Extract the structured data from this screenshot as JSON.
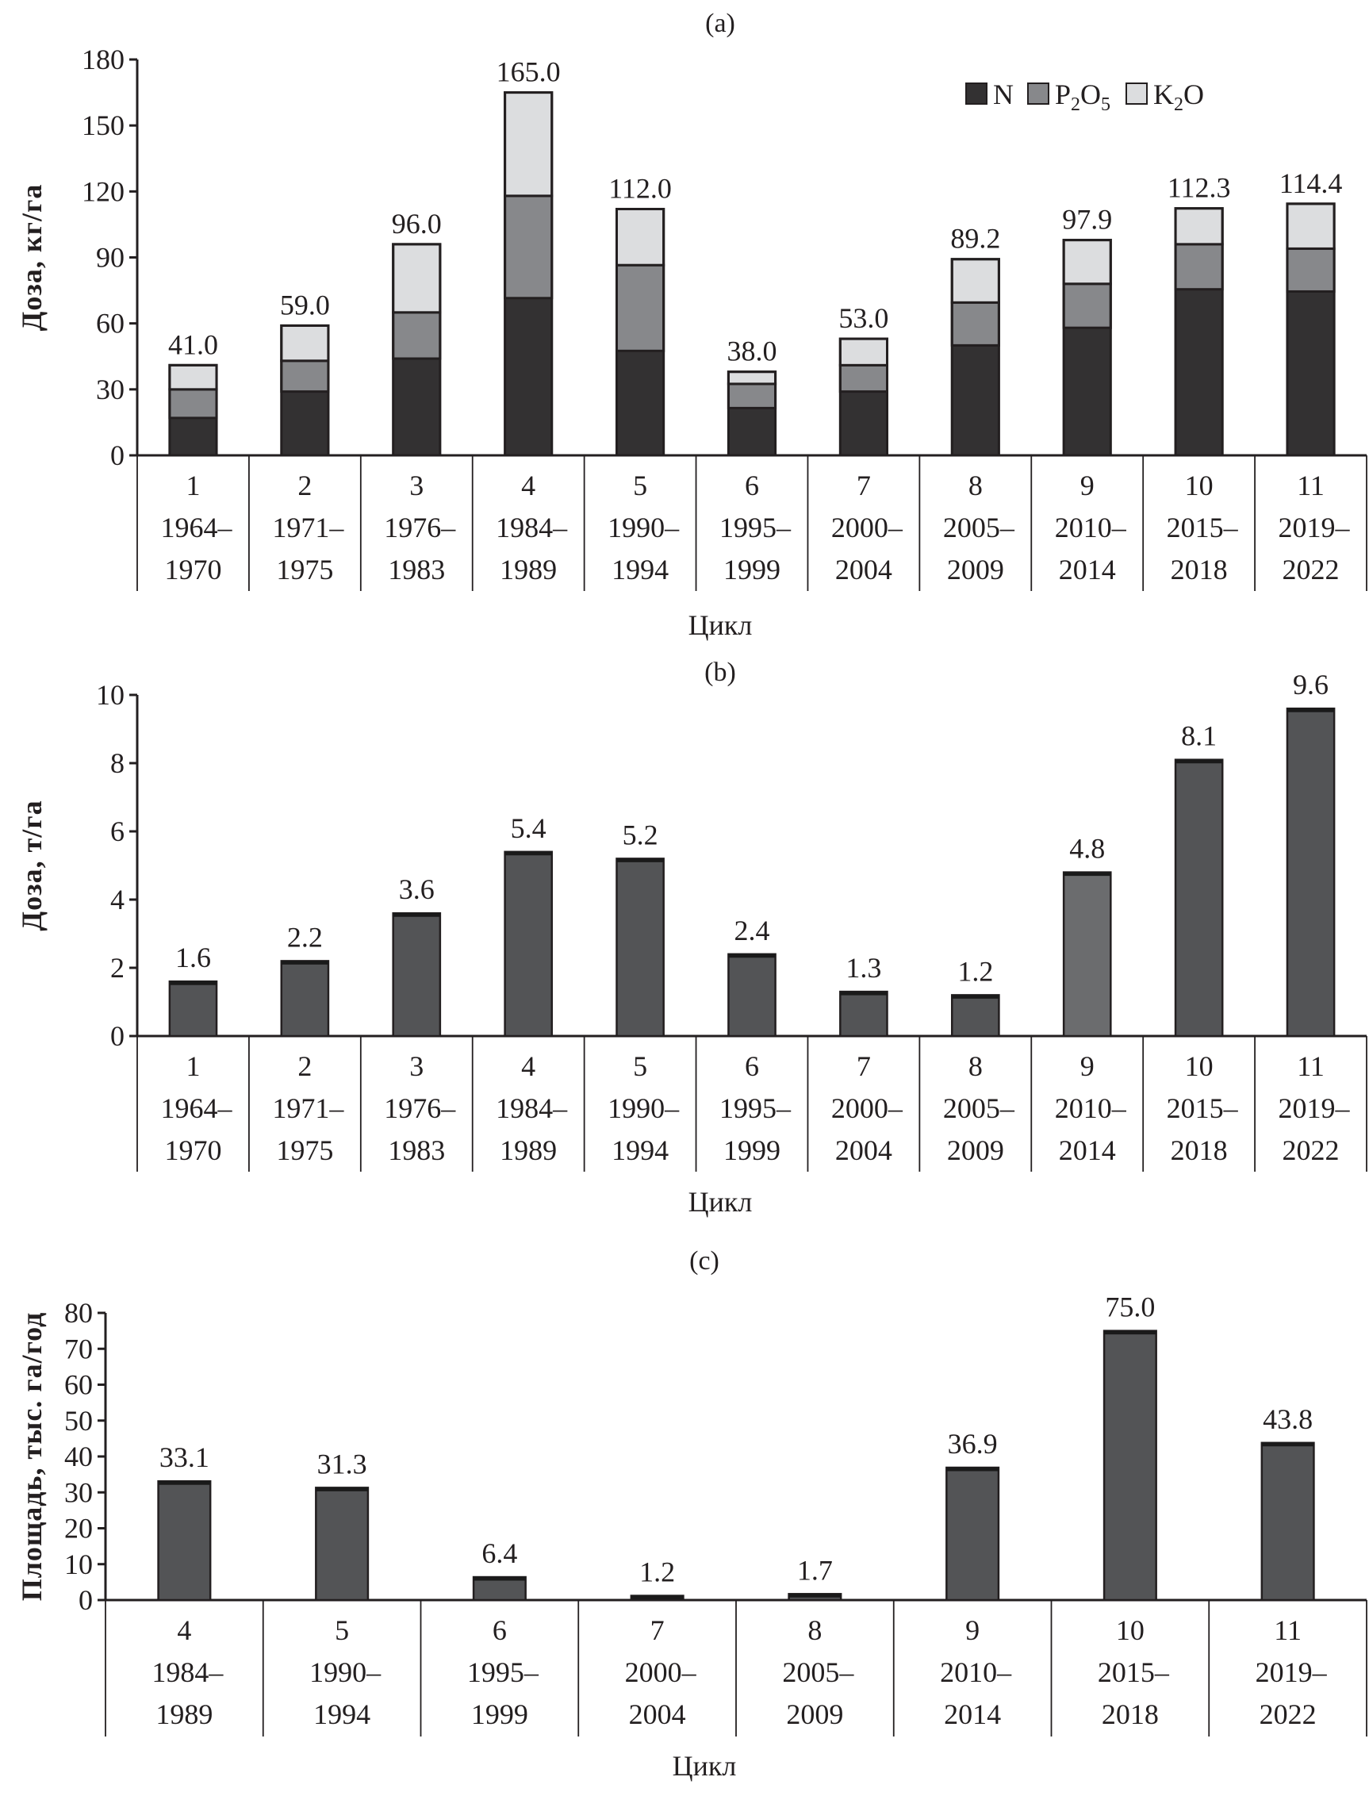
{
  "colors": {
    "N": "#333132",
    "P2O5": "#87888b",
    "K2O": "#dcdddf",
    "bar": "#535456",
    "bar_highlight": "#6b6c6e",
    "outline": "#231f20"
  },
  "chart_data": [
    {
      "id": "a",
      "type": "bar",
      "stacked": true,
      "panel_title": "(a)",
      "xlabel": "Цикл",
      "ylabel": "Доза, кг/га",
      "ylim": [
        0,
        180
      ],
      "yticks": [
        0,
        30,
        60,
        90,
        120,
        150,
        180
      ],
      "legend_position": "top-right",
      "legend": [
        {
          "key": "N",
          "label": "N",
          "sub": ""
        },
        {
          "key": "P2O5",
          "label": "P",
          "sub1": "2",
          "label2": "O",
          "sub2": "5"
        },
        {
          "key": "K2O",
          "label": "K",
          "sub1": "2",
          "label2": "O",
          "sub2": ""
        }
      ],
      "categories": [
        {
          "cycle": "1",
          "years1": "1964–",
          "years2": "1970"
        },
        {
          "cycle": "2",
          "years1": "1971–",
          "years2": "1975"
        },
        {
          "cycle": "3",
          "years1": "1976–",
          "years2": "1983"
        },
        {
          "cycle": "4",
          "years1": "1984–",
          "years2": "1989"
        },
        {
          "cycle": "5",
          "years1": "1990–",
          "years2": "1994"
        },
        {
          "cycle": "6",
          "years1": "1995–",
          "years2": "1999"
        },
        {
          "cycle": "7",
          "years1": "2000–",
          "years2": "2004"
        },
        {
          "cycle": "8",
          "years1": "2005–",
          "years2": "2009"
        },
        {
          "cycle": "9",
          "years1": "2010–",
          "years2": "2014"
        },
        {
          "cycle": "10",
          "years1": "2015–",
          "years2": "2018"
        },
        {
          "cycle": "11",
          "years1": "2019–",
          "years2": "2022"
        }
      ],
      "series": [
        {
          "name": "N",
          "values": [
            17,
            29,
            44,
            71.5,
            47.5,
            21.5,
            29,
            50,
            58,
            75.5,
            74.5
          ]
        },
        {
          "name": "P2O5",
          "values": [
            13,
            14,
            21,
            46.5,
            39,
            11,
            12,
            19.5,
            20,
            20.5,
            19.5
          ]
        },
        {
          "name": "K2O",
          "values": [
            11,
            16,
            31,
            47,
            25.5,
            5.5,
            12,
            19.7,
            19.9,
            16.3,
            20.4
          ]
        }
      ],
      "totals": [
        41.0,
        59.0,
        96.0,
        165.0,
        112.0,
        38.0,
        53.0,
        89.2,
        97.9,
        112.3,
        114.4
      ],
      "total_labels": [
        "41.0",
        "59.0",
        "96.0",
        "165.0",
        "112.0",
        "38.0",
        "53.0",
        "89.2",
        "97.9",
        "112.3",
        "114.4"
      ]
    },
    {
      "id": "b",
      "type": "bar",
      "panel_title": "(b)",
      "xlabel": "Цикл",
      "ylabel": "Доза, т/га",
      "ylim": [
        0,
        10
      ],
      "yticks": [
        0,
        2,
        4,
        6,
        8,
        10
      ],
      "categories": [
        {
          "cycle": "1",
          "years1": "1964–",
          "years2": "1970"
        },
        {
          "cycle": "2",
          "years1": "1971–",
          "years2": "1975"
        },
        {
          "cycle": "3",
          "years1": "1976–",
          "years2": "1983"
        },
        {
          "cycle": "4",
          "years1": "1984–",
          "years2": "1989"
        },
        {
          "cycle": "5",
          "years1": "1990–",
          "years2": "1994"
        },
        {
          "cycle": "6",
          "years1": "1995–",
          "years2": "1999"
        },
        {
          "cycle": "7",
          "years1": "2000–",
          "years2": "2004"
        },
        {
          "cycle": "8",
          "years1": "2005–",
          "years2": "2009"
        },
        {
          "cycle": "9",
          "years1": "2010–",
          "years2": "2014"
        },
        {
          "cycle": "10",
          "years1": "2015–",
          "years2": "2018"
        },
        {
          "cycle": "11",
          "years1": "2019–",
          "years2": "2022"
        }
      ],
      "values": [
        1.6,
        2.2,
        3.6,
        5.4,
        5.2,
        2.4,
        1.3,
        1.2,
        4.8,
        8.1,
        9.6
      ],
      "value_labels": [
        "1.6",
        "2.2",
        "3.6",
        "5.4",
        "5.2",
        "2.4",
        "1.3",
        "1.2",
        "4.8",
        "8.1",
        "9.6"
      ],
      "highlight_index": 8
    },
    {
      "id": "c",
      "type": "bar",
      "panel_title": "(c)",
      "xlabel": "Цикл",
      "ylabel": "Площадь, тыс. га/год",
      "ylim": [
        0,
        80
      ],
      "yticks": [
        0,
        10,
        20,
        30,
        40,
        50,
        60,
        70,
        80
      ],
      "categories": [
        {
          "cycle": "4",
          "years1": "1984–",
          "years2": "1989"
        },
        {
          "cycle": "5",
          "years1": "1990–",
          "years2": "1994"
        },
        {
          "cycle": "6",
          "years1": "1995–",
          "years2": "1999"
        },
        {
          "cycle": "7",
          "years1": "2000–",
          "years2": "2004"
        },
        {
          "cycle": "8",
          "years1": "2005–",
          "years2": "2009"
        },
        {
          "cycle": "9",
          "years1": "2010–",
          "years2": "2014"
        },
        {
          "cycle": "10",
          "years1": "2015–",
          "years2": "2018"
        },
        {
          "cycle": "11",
          "years1": "2019–",
          "years2": "2022"
        }
      ],
      "values": [
        33.1,
        31.3,
        6.4,
        1.2,
        1.7,
        36.9,
        75.0,
        43.8
      ],
      "value_labels": [
        "33.1",
        "31.3",
        "6.4",
        "1.2",
        "1.7",
        "36.9",
        "75.0",
        "43.8"
      ]
    }
  ]
}
